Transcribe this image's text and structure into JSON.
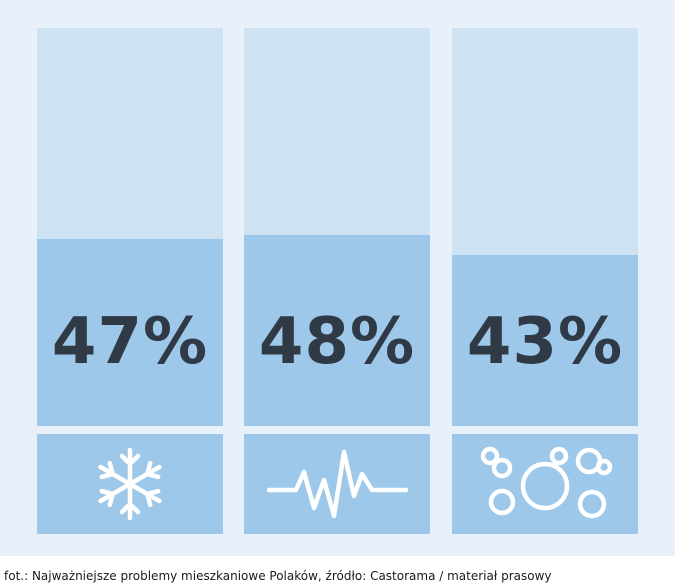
{
  "chart_data": {
    "type": "bar",
    "categories": [
      "snowflake-icon",
      "waveform-icon",
      "bubbles-icon"
    ],
    "values": [
      47,
      48,
      43
    ],
    "value_labels": [
      "47%",
      "48%",
      "43%"
    ],
    "ylim": [
      0,
      100
    ],
    "colors": {
      "track": "#cde3f3",
      "fill": "#9dc8e9",
      "text": "#2f3a46",
      "background": "#e8f1fa",
      "icon": "#ffffff"
    }
  },
  "caption": "fot.: Najważniejsze problemy mieszkaniowe Polaków, źródło: Castorama / materiał prasowy"
}
